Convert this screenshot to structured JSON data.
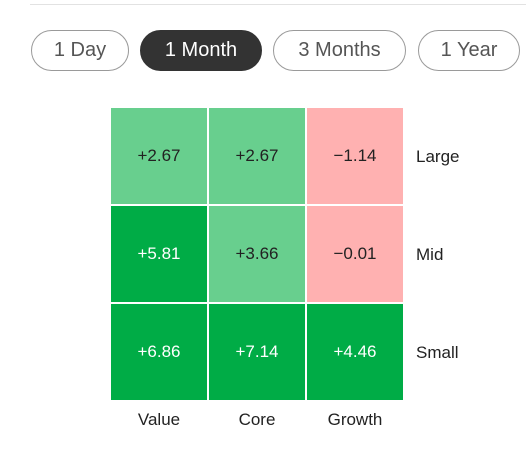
{
  "tabs": [
    "1 Day",
    "1 Month",
    "3 Months",
    "1 Year"
  ],
  "active_tab": 1,
  "grid": {
    "rows": [
      "Large",
      "Mid",
      "Small"
    ],
    "columns": [
      "Value",
      "Core",
      "Growth"
    ],
    "cells": [
      [
        "+2.67",
        "+2.67",
        "−1.14"
      ],
      [
        "+5.81",
        "+3.66",
        "−0.01"
      ],
      [
        "+6.86",
        "+7.14",
        "+4.46"
      ]
    ],
    "colors": [
      [
        "#68cf8e",
        "#68cf8e",
        "#ffb1b1"
      ],
      [
        "#00ac46",
        "#68cf8e",
        "#ffb1b1"
      ],
      [
        "#00ac46",
        "#00ac46",
        "#00ac46"
      ]
    ]
  }
}
